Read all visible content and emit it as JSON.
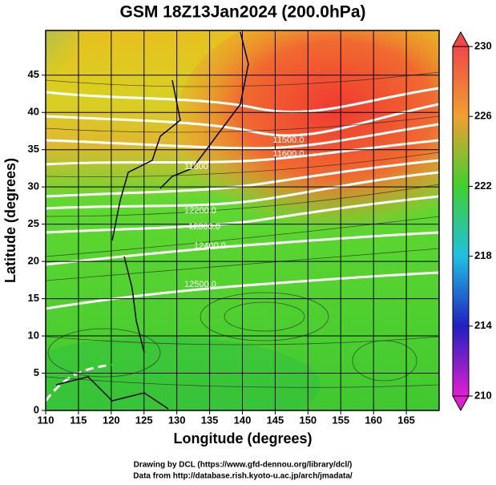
{
  "title": "GSM 18Z13Jan2024 (200.0hPa)",
  "x_axis": {
    "label": "Longitude (degrees)",
    "lim": [
      110,
      170
    ],
    "ticks": [
      110,
      115,
      120,
      125,
      130,
      135,
      140,
      145,
      150,
      155,
      160,
      165
    ]
  },
  "y_axis": {
    "label": "Latitude  (degrees)",
    "lim": [
      0,
      51
    ],
    "ticks": [
      0,
      5,
      10,
      15,
      20,
      25,
      30,
      35,
      40,
      45
    ]
  },
  "colorbar": {
    "lim": [
      210,
      230
    ],
    "ticks": [
      210,
      214,
      218,
      222,
      226,
      230
    ]
  },
  "contour_labels": [
    "11500.0",
    "11600.0",
    "11800",
    "12200.0",
    "12300.0",
    "12400.0",
    "12500.0"
  ],
  "credits": [
    "Drawing by DCL (https://www.gfd-dennou.org/library/dcl/)",
    "Data from http://database.rish.kyoto-u.ac.jp/arch/jmadata/"
  ]
}
